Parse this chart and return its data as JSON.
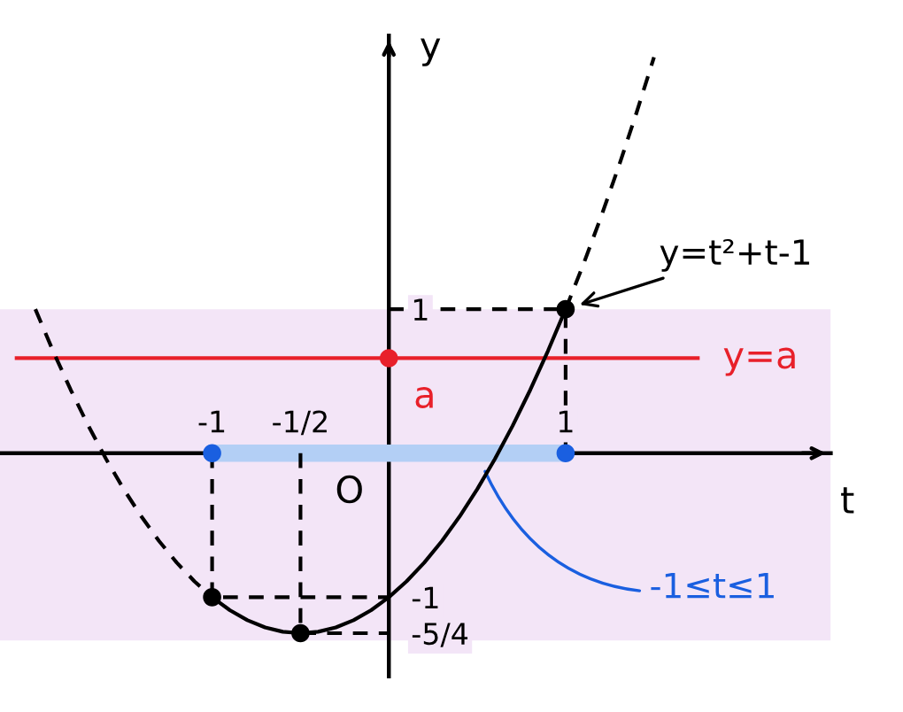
{
  "chart_data": {
    "type": "line",
    "xlabel": "t",
    "ylabel": "y",
    "xlim": [
      -2.2,
      2.5
    ],
    "ylim": [
      -1.55,
      2.9
    ],
    "xticks": [
      -1,
      {
        "value": -0.5,
        "label": "-1/2"
      },
      1
    ],
    "yticks": [
      1,
      -1,
      {
        "value": -1.25,
        "label": "-5/4"
      }
    ],
    "grid": false,
    "bands": [
      {
        "axis": "y",
        "from": -1.3,
        "to": 1.0,
        "color": "#f3e5f7"
      }
    ],
    "ref_lines": [
      {
        "axis": "y",
        "value": 0.66,
        "label": "y=a",
        "color": "#e8202a",
        "line_style": "solid"
      }
    ],
    "annotations": [
      {
        "text": "O",
        "x": 0,
        "y": 0
      }
    ],
    "series": [
      {
        "color": "#b3cff5",
        "line_style": "solid",
        "x": [
          -1,
          1
        ],
        "values": [
          0,
          0
        ]
      },
      {
        "color": "#000000",
        "line_style": "dashed",
        "x": [
          0,
          1,
          1
        ],
        "values": [
          1,
          1,
          0
        ]
      },
      {
        "color": "#000000",
        "line_style": "dashed",
        "x": [
          -1,
          -1,
          0
        ],
        "values": [
          0,
          -1,
          -1
        ]
      },
      {
        "color": "#000000",
        "line_style": "dashed",
        "x": [
          -0.5,
          -0.5,
          0
        ],
        "values": [
          0,
          -1.25,
          -1.25
        ]
      },
      {
        "color": "#000000",
        "line_style": "dashed",
        "x": [
          -2,
          -1.9,
          -1.8,
          -1.7,
          -1.6,
          -1.5,
          -1.4,
          -1.3,
          -1.2,
          -1.1,
          -1
        ],
        "values": [
          1,
          0.71,
          0.44,
          0.19,
          -0.04,
          -0.25,
          -0.44,
          -0.61,
          -0.76,
          -0.89,
          -1
        ]
      },
      {
        "color": "#000000",
        "line_style": "dashed",
        "x": [
          1,
          1.1,
          1.2,
          1.3,
          1.4,
          1.5
        ],
        "values": [
          1,
          1.31,
          1.64,
          1.99,
          2.36,
          2.75
        ]
      },
      {
        "name": "y=t²+t-1",
        "color": "#000000",
        "line_style": "solid",
        "x": [
          -1,
          -0.9,
          -0.8,
          -0.7,
          -0.6,
          -0.5,
          -0.4,
          -0.3,
          -0.2,
          -0.1,
          0,
          0.1,
          0.2,
          0.3,
          0.4,
          0.5,
          0.6,
          0.7,
          0.8,
          0.9,
          1
        ],
        "values": [
          -1,
          -1.09,
          -1.16,
          -1.21,
          -1.24,
          -1.25,
          -1.24,
          -1.21,
          -1.16,
          -1.09,
          -1,
          -0.89,
          -0.76,
          -0.61,
          -0.44,
          -0.25,
          -0.04,
          0.19,
          0.44,
          0.71,
          1
        ]
      },
      {
        "type": "scatter",
        "color": "#000000",
        "marker": "circle",
        "x": [
          -1,
          -0.5,
          1
        ],
        "values": [
          -1,
          -1.25,
          1
        ]
      },
      {
        "type": "scatter",
        "name": "-1≤t≤1",
        "color": "#1a5fe0",
        "marker": "circle",
        "x": [
          -1,
          1
        ],
        "values": [
          0,
          0
        ]
      },
      {
        "type": "scatter",
        "name": "a",
        "color": "#e8202a",
        "marker": "circle",
        "x": [
          0
        ],
        "values": [
          0.66
        ]
      }
    ]
  }
}
